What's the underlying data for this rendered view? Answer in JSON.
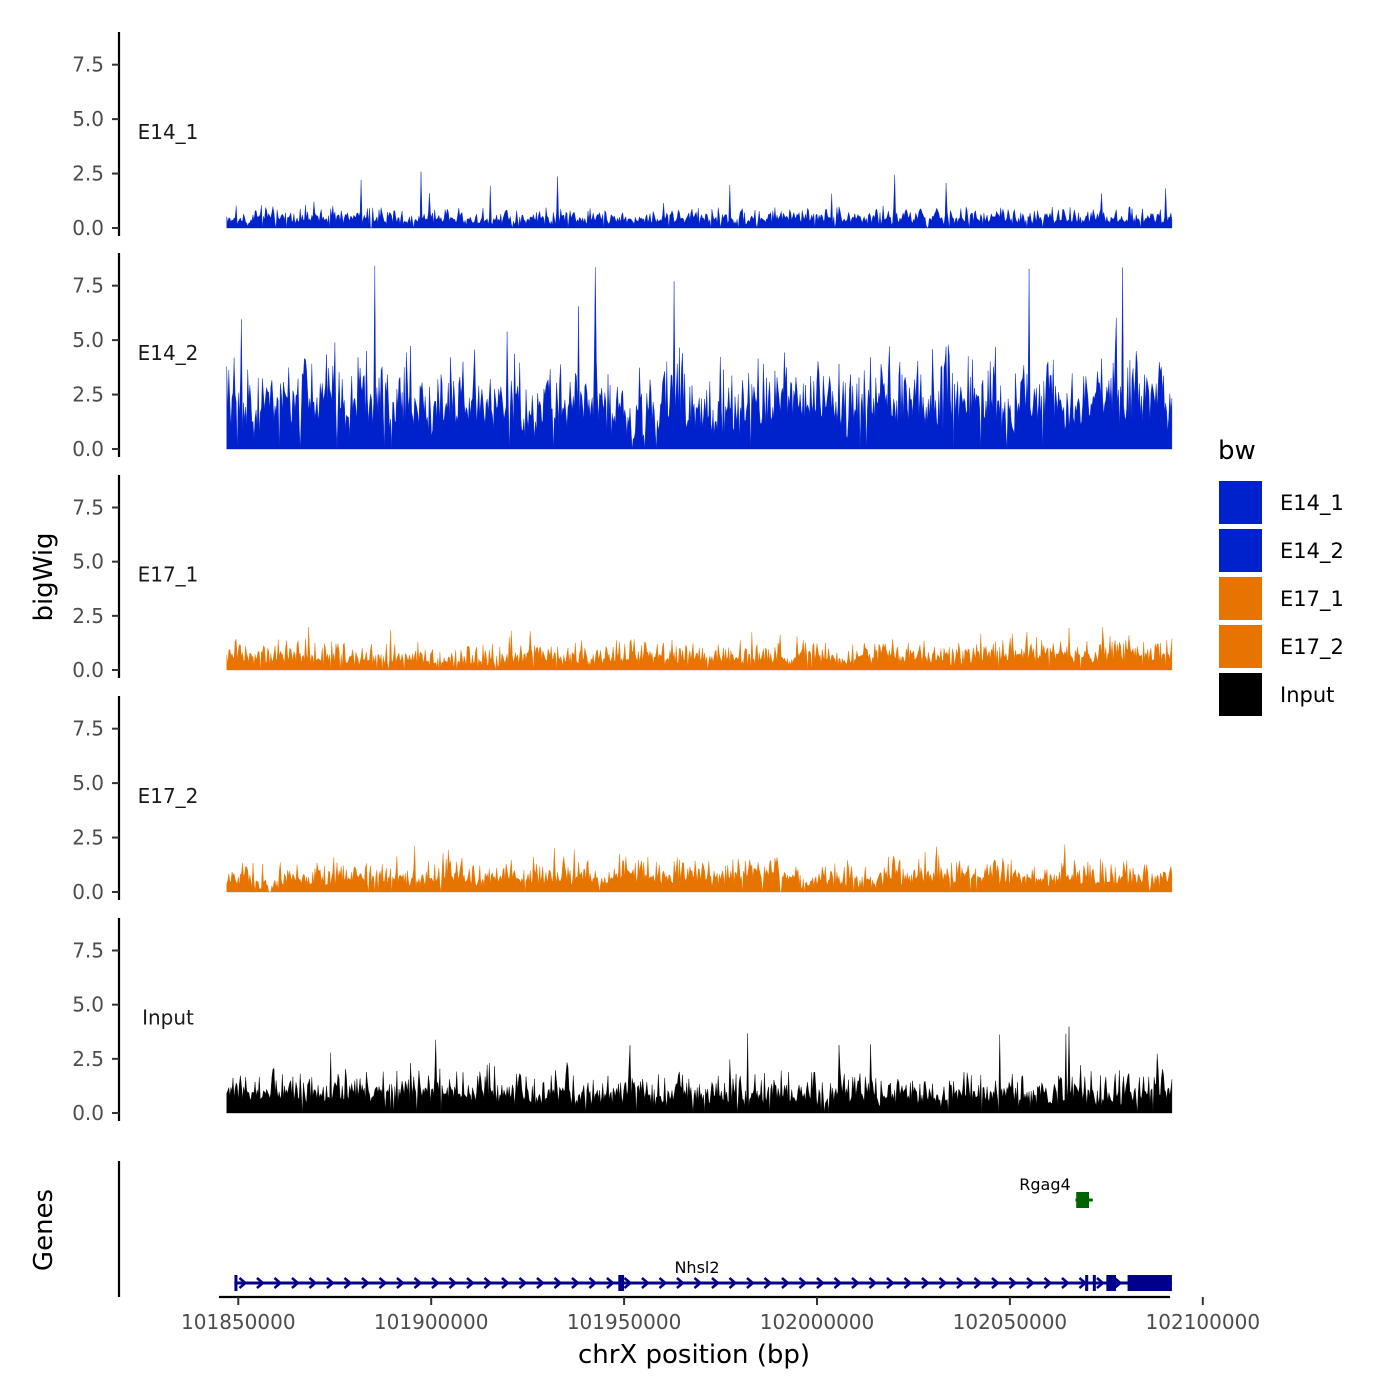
{
  "chart_data": {
    "type": "area",
    "ylabel": "bigWig",
    "xlabel": "chrX position (bp)",
    "genes_label": "Genes",
    "ylim": [
      0,
      9
    ],
    "y_ticks": [
      "0.0",
      "2.5",
      "5.0",
      "7.5"
    ],
    "xlim": [
      101845000,
      102091500
    ],
    "x_ticks": [
      "101850000",
      "101900000",
      "101950000",
      "102000000",
      "102050000",
      "102100000"
    ],
    "region": {
      "start": 101847000,
      "end": 102092000
    },
    "legend_title": "bw",
    "legend": [
      {
        "label": "E14_1",
        "color": "#0022CC"
      },
      {
        "label": "E14_2",
        "color": "#0022CC"
      },
      {
        "label": "E17_1",
        "color": "#E87400"
      },
      {
        "label": "E17_2",
        "color": "#E87400"
      },
      {
        "label": "Input",
        "color": "#000000"
      }
    ],
    "series": [
      {
        "name": "E14_1",
        "color": "#0022CC",
        "baseline": 0.35,
        "noise": 0.6,
        "peak_max": 2.6
      },
      {
        "name": "E14_2",
        "color": "#0022CC",
        "baseline": 1.6,
        "noise": 2.4,
        "peak_max": 8.6
      },
      {
        "name": "E17_1",
        "color": "#E87400",
        "baseline": 0.5,
        "noise": 0.8,
        "peak_max": 2.0
      },
      {
        "name": "E17_2",
        "color": "#E87400",
        "baseline": 0.5,
        "noise": 0.9,
        "peak_max": 2.2
      },
      {
        "name": "Input",
        "color": "#000000",
        "baseline": 0.7,
        "noise": 1.2,
        "peak_max": 4.0
      }
    ],
    "genes": [
      {
        "name": "Nhsl2",
        "color": "#00008B",
        "start": 101849000,
        "end": 102092000,
        "strand": "+",
        "exons": [
          [
            101849000,
            101849600
          ],
          [
            101948500,
            101950000
          ],
          [
            102069500,
            102070300
          ],
          [
            102071500,
            102072200
          ],
          [
            102075000,
            102077500
          ],
          [
            102080500,
            102092000
          ]
        ]
      },
      {
        "name": "Rgag4",
        "color": "#006400",
        "start": 102067000,
        "end": 102071500,
        "strand": "-",
        "exons": [
          [
            102067200,
            102070500
          ]
        ]
      }
    ]
  }
}
